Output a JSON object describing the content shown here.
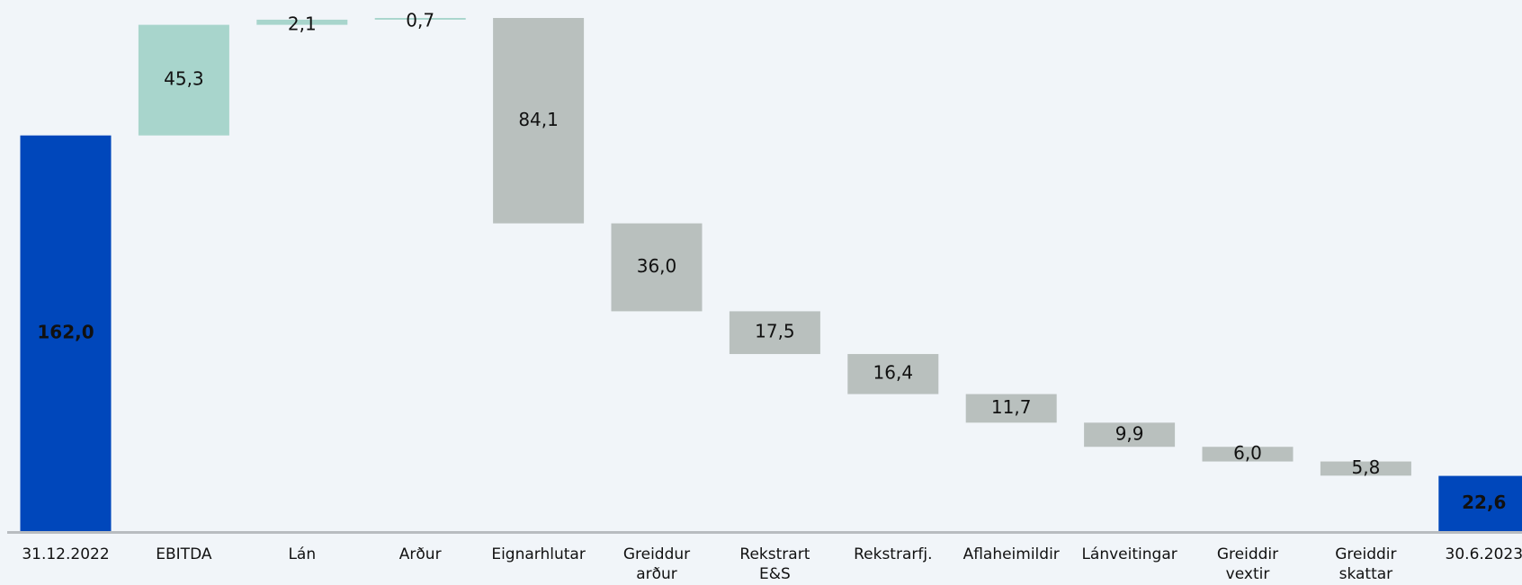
{
  "chart_data": {
    "type": "waterfall",
    "categories": [
      "31.12.2022",
      "EBITDA",
      "Lán",
      "Arður",
      "Eignarhlutar",
      "Greiddur arður",
      "Rekstrart E&S",
      "Rekstrarfj.",
      "Aflaheimildir",
      "Lánveitingar",
      "Greiddir vextir",
      "Greiddir skattar",
      "30.6.2023"
    ],
    "values": [
      162.0,
      45.3,
      2.1,
      0.7,
      -84.1,
      -36.0,
      -17.5,
      -16.4,
      -11.7,
      -9.9,
      -6.0,
      -5.8,
      22.6
    ],
    "value_labels": [
      "162,0",
      "45,3",
      "2,1",
      "0,7",
      "84,1",
      "36,0",
      "17,5",
      "16,4",
      "11,7",
      "9,9",
      "6,0",
      "5,8",
      "22,6"
    ],
    "total_color": "#0047bb",
    "increase_color": "#a8d5cc",
    "decrease_color": "#b9c0be"
  }
}
